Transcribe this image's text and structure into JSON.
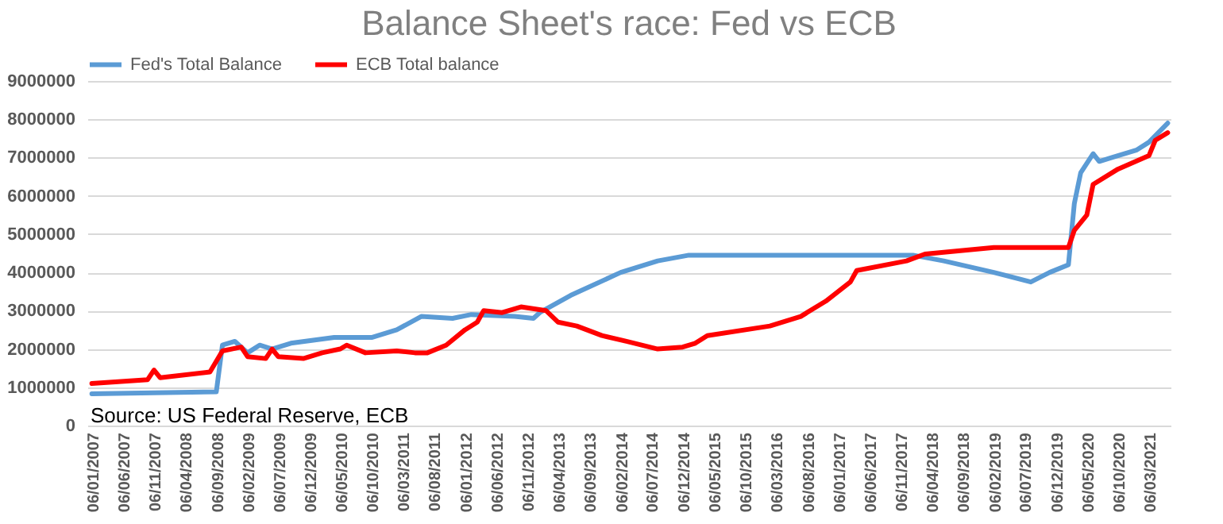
{
  "chart_data": {
    "type": "line",
    "title": "Balance Sheet's race: Fed vs ECB",
    "annotations": [
      "Source: US Federal Reserve, ECB"
    ],
    "legend": "top",
    "grid": "y",
    "line_style": "solid",
    "xlim": [
      "2006-12-10",
      "2021-06-15"
    ],
    "xticks": [
      {
        "value": "2007-01-06",
        "label": "06/01/2007"
      },
      {
        "value": "2007-06-06",
        "label": "06/06/2007"
      },
      {
        "value": "2007-11-06",
        "label": "06/11/2007"
      },
      {
        "value": "2008-04-06",
        "label": "06/04/2008"
      },
      {
        "value": "2008-09-06",
        "label": "06/09/2008"
      },
      {
        "value": "2009-02-06",
        "label": "06/02/2009"
      },
      {
        "value": "2009-07-06",
        "label": "06/07/2009"
      },
      {
        "value": "2009-12-06",
        "label": "06/12/2009"
      },
      {
        "value": "2010-05-06",
        "label": "06/05/2010"
      },
      {
        "value": "2010-10-06",
        "label": "06/10/2010"
      },
      {
        "value": "2011-03-06",
        "label": "06/03/2011"
      },
      {
        "value": "2011-08-06",
        "label": "06/08/2011"
      },
      {
        "value": "2012-01-06",
        "label": "06/01/2012"
      },
      {
        "value": "2012-06-06",
        "label": "06/06/2012"
      },
      {
        "value": "2012-11-06",
        "label": "06/11/2012"
      },
      {
        "value": "2013-04-06",
        "label": "06/04/2013"
      },
      {
        "value": "2013-09-06",
        "label": "06/09/2013"
      },
      {
        "value": "2014-02-06",
        "label": "06/02/2014"
      },
      {
        "value": "2014-07-06",
        "label": "06/07/2014"
      },
      {
        "value": "2014-12-06",
        "label": "06/12/2014"
      },
      {
        "value": "2015-05-06",
        "label": "06/05/2015"
      },
      {
        "value": "2015-10-06",
        "label": "06/10/2015"
      },
      {
        "value": "2016-03-06",
        "label": "06/03/2016"
      },
      {
        "value": "2016-08-06",
        "label": "06/08/2016"
      },
      {
        "value": "2017-01-06",
        "label": "06/01/2017"
      },
      {
        "value": "2017-06-06",
        "label": "06/06/2017"
      },
      {
        "value": "2017-11-06",
        "label": "06/11/2017"
      },
      {
        "value": "2018-04-06",
        "label": "06/04/2018"
      },
      {
        "value": "2018-09-06",
        "label": "06/09/2018"
      },
      {
        "value": "2019-02-06",
        "label": "06/02/2019"
      },
      {
        "value": "2019-07-06",
        "label": "06/07/2019"
      },
      {
        "value": "2019-12-06",
        "label": "06/12/2019"
      },
      {
        "value": "2020-05-06",
        "label": "06/05/2020"
      },
      {
        "value": "2020-10-06",
        "label": "06/10/2020"
      },
      {
        "value": "2021-03-06",
        "label": "06/03/2021"
      }
    ],
    "ylim": [
      0,
      9000000
    ],
    "yticks": [
      0,
      1000000,
      2000000,
      3000000,
      4000000,
      5000000,
      6000000,
      7000000,
      8000000,
      9000000
    ],
    "series": [
      {
        "name": "Fed's Total Balance",
        "color": "#5b9bd5",
        "x": [
          "2007-01",
          "2008-09",
          "2008-10",
          "2008-12",
          "2009-02",
          "2009-04",
          "2009-06",
          "2009-09",
          "2010-04",
          "2010-10",
          "2011-02",
          "2011-06",
          "2011-11",
          "2012-02",
          "2012-09",
          "2012-12",
          "2013-01",
          "2013-06",
          "2014-02",
          "2014-08",
          "2015-01",
          "2016-06",
          "2018-01",
          "2018-06",
          "2019-02",
          "2019-08",
          "2019-11",
          "2020-02",
          "2020-03",
          "2020-04",
          "2020-06",
          "2020-07",
          "2020-09",
          "2021-01",
          "2021-03",
          "2021-06"
        ],
        "values": [
          830000,
          880000,
          2100000,
          2200000,
          1900000,
          2100000,
          2000000,
          2150000,
          2300000,
          2300000,
          2500000,
          2850000,
          2800000,
          2900000,
          2850000,
          2800000,
          2950000,
          3400000,
          4000000,
          4300000,
          4450000,
          4450000,
          4450000,
          4300000,
          4000000,
          3750000,
          4000000,
          4200000,
          5800000,
          6600000,
          7100000,
          6900000,
          7000000,
          7200000,
          7400000,
          7900000
        ]
      },
      {
        "name": "ECB Total balance",
        "color": "#ff0000",
        "x": [
          "2007-01",
          "2007-10",
          "2007-11",
          "2007-12",
          "2008-08",
          "2008-10",
          "2009-01",
          "2009-02",
          "2009-05",
          "2009-06",
          "2009-07",
          "2009-11",
          "2010-02",
          "2010-05",
          "2010-06",
          "2010-09",
          "2011-02",
          "2011-05",
          "2011-07",
          "2011-10",
          "2012-01",
          "2012-03",
          "2012-04",
          "2012-07",
          "2012-10",
          "2013-02",
          "2013-04",
          "2013-07",
          "2013-11",
          "2014-03",
          "2014-08",
          "2014-12",
          "2015-02",
          "2015-04",
          "2016-02",
          "2016-07",
          "2016-11",
          "2017-03",
          "2017-04",
          "2017-12",
          "2018-03",
          "2019-02",
          "2020-02",
          "2020-03",
          "2020-05",
          "2020-06",
          "2020-10",
          "2021-03",
          "2021-04",
          "2021-06"
        ],
        "values": [
          1100000,
          1200000,
          1450000,
          1250000,
          1400000,
          1950000,
          2050000,
          1800000,
          1750000,
          2000000,
          1800000,
          1750000,
          1900000,
          2000000,
          2100000,
          1900000,
          1950000,
          1900000,
          1900000,
          2100000,
          2500000,
          2700000,
          3000000,
          2950000,
          3100000,
          3000000,
          2700000,
          2600000,
          2350000,
          2200000,
          2000000,
          2050000,
          2150000,
          2350000,
          2600000,
          2850000,
          3250000,
          3750000,
          4050000,
          4300000,
          4480000,
          4650000,
          4650000,
          5100000,
          5500000,
          6300000,
          6700000,
          7050000,
          7450000,
          7650000
        ]
      }
    ]
  }
}
